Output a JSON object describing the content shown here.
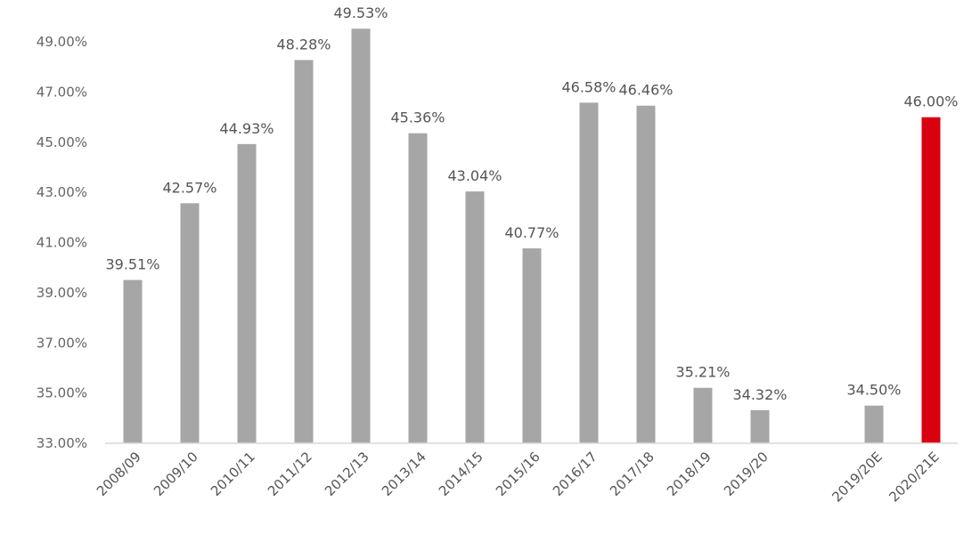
{
  "chart_data": {
    "type": "bar",
    "title": "",
    "xlabel": "",
    "ylabel": "",
    "categories": [
      "2008/09",
      "2009/10",
      "2010/11",
      "2011/12",
      "2012/13",
      "2013/14",
      "2014/15",
      "2015/16",
      "2016/17",
      "2017/18",
      "2018/19",
      "2019/20",
      "",
      "2019/20E",
      "2020/21E"
    ],
    "values": [
      39.51,
      42.57,
      44.93,
      48.28,
      49.53,
      45.36,
      43.04,
      40.77,
      46.58,
      46.46,
      35.21,
      34.32,
      null,
      34.5,
      46.0
    ],
    "value_labels": [
      "39.51%",
      "42.57%",
      "44.93%",
      "48.28%",
      "49.53%",
      "45.36%",
      "43.04%",
      "40.77%",
      "46.58%",
      "46.46%",
      "35.21%",
      "34.32%",
      "",
      "34.50%",
      "46.00%"
    ],
    "bar_colors": [
      "#a6a6a6",
      "#a6a6a6",
      "#a6a6a6",
      "#a6a6a6",
      "#a6a6a6",
      "#a6a6a6",
      "#a6a6a6",
      "#a6a6a6",
      "#a6a6a6",
      "#a6a6a6",
      "#a6a6a6",
      "#a6a6a6",
      "#a6a6a6",
      "#a6a6a6",
      "#d9000f"
    ],
    "ylim": [
      33,
      50
    ],
    "yticks": [
      33,
      35,
      37,
      39,
      41,
      43,
      45,
      47,
      49
    ],
    "ytick_labels": [
      "33.00%",
      "35.00%",
      "37.00%",
      "39.00%",
      "41.00%",
      "43.00%",
      "45.00%",
      "47.00%",
      "49.00%"
    ],
    "grid": false,
    "legend": "none",
    "axis_color": "#d9d9d9"
  }
}
